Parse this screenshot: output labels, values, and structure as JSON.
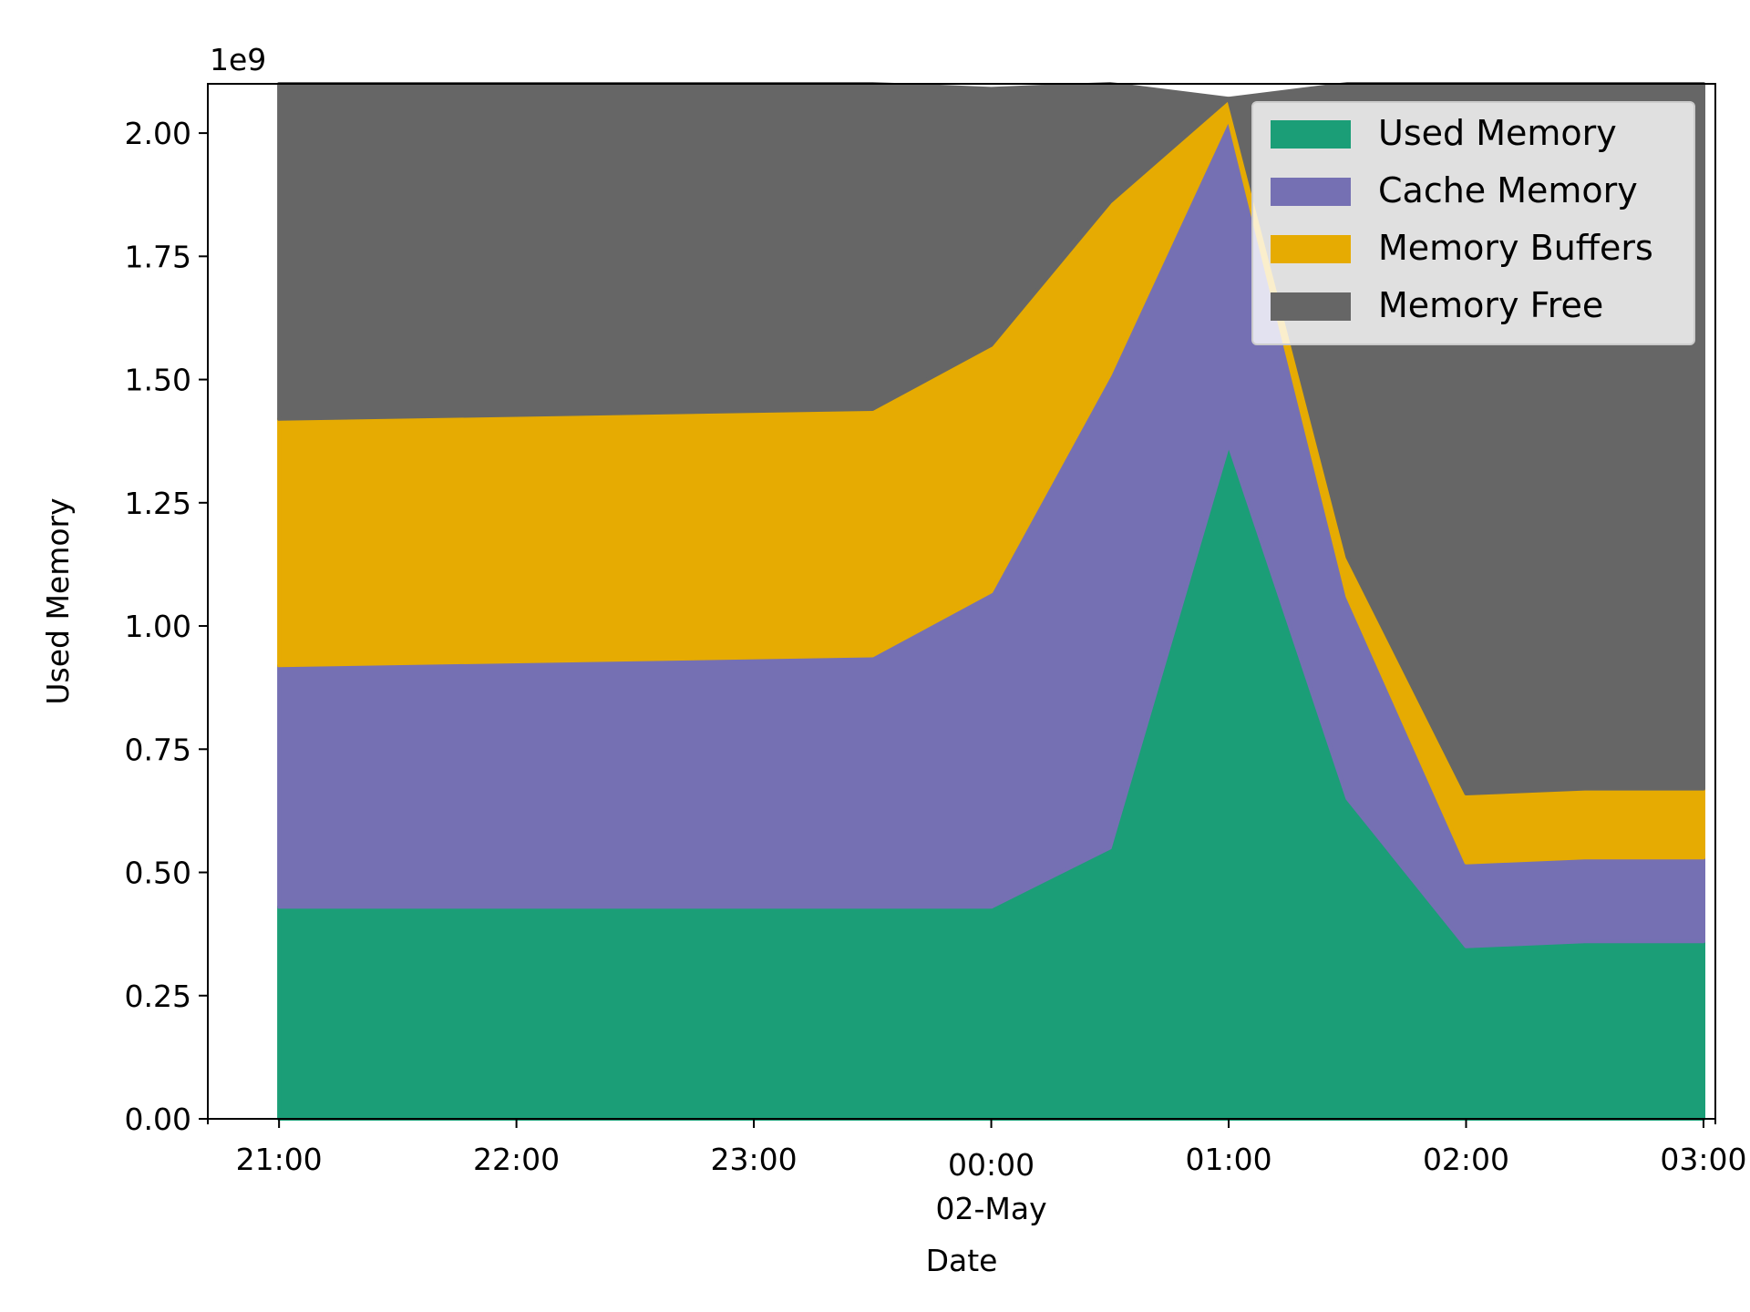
{
  "chart_data": {
    "type": "area",
    "stacked": true,
    "xlabel": "Date",
    "ylabel": "Used Memory",
    "y_offset_label": "1e9",
    "ylim": [
      0,
      2.1
    ],
    "xlim": [
      "2018-05-01 20:42",
      "2018-05-02 03:03"
    ],
    "x": [
      "2018-05-01 21:00",
      "2018-05-01 23:30",
      "2018-05-02 00:00",
      "2018-05-02 00:30",
      "2018-05-02 01:00",
      "2018-05-02 01:30",
      "2018-05-02 02:00",
      "2018-05-02 02:30",
      "2018-05-02 03:00"
    ],
    "x_ticks": [
      {
        "x": "2018-05-01 21:00",
        "label": "21:00"
      },
      {
        "x": "2018-05-01 22:00",
        "label": "22:00"
      },
      {
        "x": "2018-05-01 23:00",
        "label": "23:00"
      },
      {
        "x": "2018-05-02 00:00",
        "label": "00:00",
        "sublabel": "02-May"
      },
      {
        "x": "2018-05-02 01:00",
        "label": "01:00"
      },
      {
        "x": "2018-05-02 02:00",
        "label": "02:00"
      },
      {
        "x": "2018-05-02 03:00",
        "label": "03:00"
      }
    ],
    "y_ticks": [
      "0.00",
      "0.25",
      "0.50",
      "0.75",
      "1.00",
      "1.25",
      "1.50",
      "1.75",
      "2.00"
    ],
    "y_tick_values": [
      0,
      0.25,
      0.5,
      0.75,
      1.0,
      1.25,
      1.5,
      1.75,
      2.0
    ],
    "series": [
      {
        "name": "Used Memory",
        "color": "#1b9e77",
        "values": [
          0.43,
          0.43,
          0.43,
          0.55,
          1.37,
          0.65,
          0.35,
          0.36,
          0.36
        ]
      },
      {
        "name": "Cache Memory",
        "color": "#7570b3",
        "values": [
          0.49,
          0.51,
          0.64,
          0.96,
          0.66,
          0.41,
          0.17,
          0.17,
          0.17
        ]
      },
      {
        "name": "Memory Buffers",
        "color": "#e6ab02",
        "values": [
          0.5,
          0.5,
          0.5,
          0.35,
          0.04,
          0.08,
          0.14,
          0.14,
          0.14
        ]
      },
      {
        "name": "Memory Free",
        "color": "#666666",
        "values": [
          0.68,
          0.66,
          0.52,
          0.24,
          0.0,
          0.96,
          1.44,
          1.43,
          1.43
        ]
      }
    ],
    "grid": false,
    "legend_position": "top-right"
  }
}
